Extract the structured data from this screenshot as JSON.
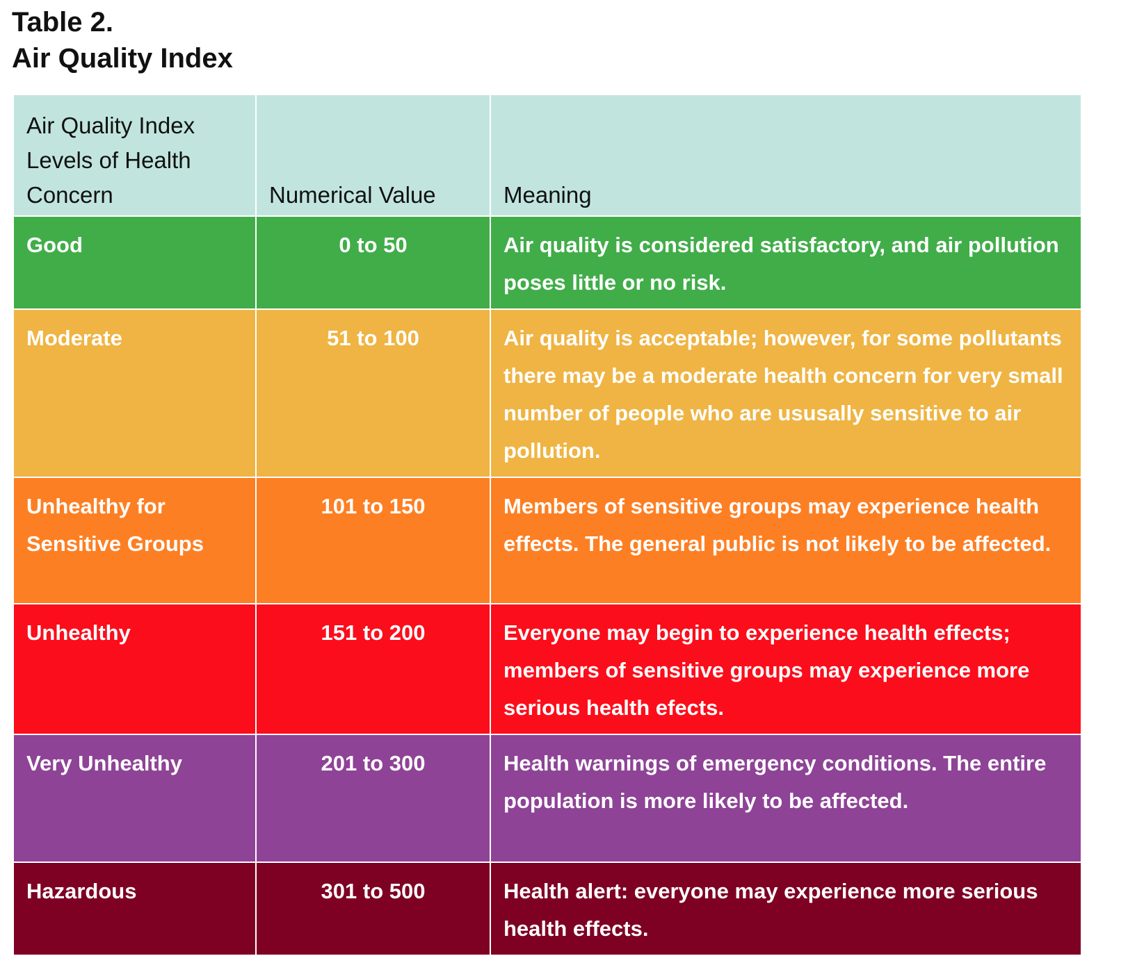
{
  "title_line1": "Table 2.",
  "title_line2": "Air Quality Index",
  "headers": [
    "Air Quality Index Levels of Health Concern",
    "Numerical Value",
    "Meaning"
  ],
  "rows": [
    {
      "level": "Good",
      "range": "0 to 50",
      "meaning": "Air quality is considered satisfactory, and air pollution poses little or no risk.",
      "color": "#41ad49"
    },
    {
      "level": "Moderate",
      "range": "51 to 100",
      "meaning": "Air quality is acceptable; however, for some pollutants there may be a moderate health concern for very small number of people who are ususally sensitive to air pollution.",
      "color": "#efb443"
    },
    {
      "level": "Unhealthy for Sensitive Groups",
      "range": "101 to 150",
      "meaning": "Members of sensitive groups may experience health effects. The general public is not likely to be affected.",
      "color": "#fd7f23"
    },
    {
      "level": "Unhealthy",
      "range": "151 to 200",
      "meaning": "Everyone may begin to experience health effects; members of sensitive groups may experience more serious health efects.",
      "color": "#fc0d1b"
    },
    {
      "level": "Very Unhealthy",
      "range": "201 to 300",
      "meaning": "Health warnings of emergency conditions. The entire population is more likely to be affected.",
      "color": "#8e4396"
    },
    {
      "level": "Hazardous",
      "range": "301 to 500",
      "meaning": "Health alert: everyone may experience more serious health effects.",
      "color": "#7e0023"
    }
  ]
}
